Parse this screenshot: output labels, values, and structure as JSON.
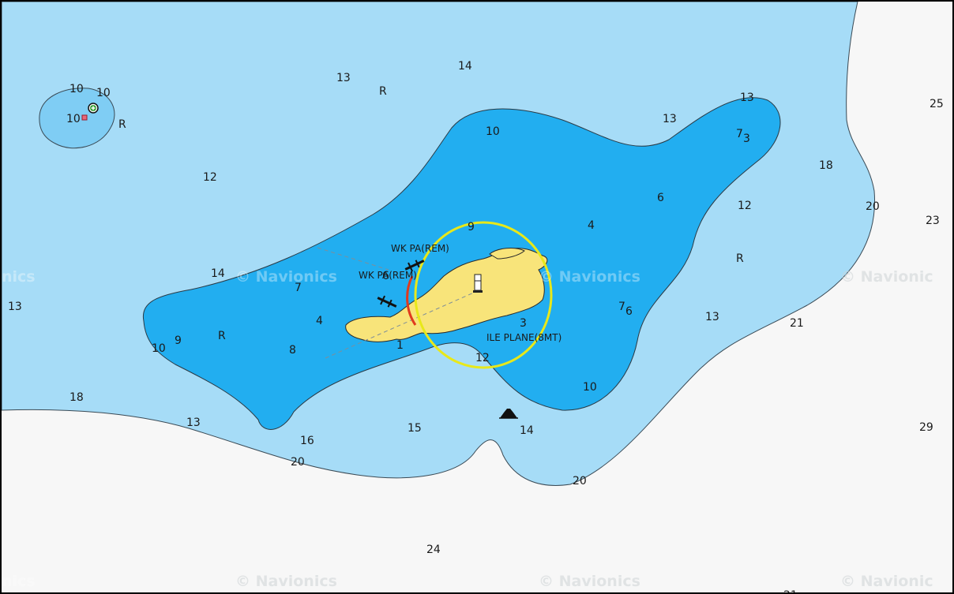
{
  "watermark": "© Navionics",
  "watermark_edge_left": "nics",
  "watermark_edge_right": "© Navionic",
  "colors": {
    "land": "#f7f7f7",
    "shallow": "#a6dcf7",
    "deep": "#22aef0",
    "island": "#f8e47a",
    "sector_ring": "#e8e81a",
    "sector_red": "#e03a1e"
  },
  "labels": {
    "wreck_1": "WK PA(REM)",
    "wreck_2": "WK PA(REM)",
    "island_name": "ILE PLANE(8MT)"
  },
  "icons": {
    "lighthouse": "lighthouse-icon",
    "wreck": "wreck-icon",
    "mooring": "mooring-buoy-icon",
    "marker": "red-marker-icon",
    "rock": "rock-hazard-icon"
  },
  "depths": {
    "d1": "10",
    "d2": "10",
    "d3": "10",
    "d4": "R",
    "d5": "13",
    "d6": "R",
    "d7": "14",
    "d8": "12",
    "d9": "13",
    "d10": "13",
    "d11": "10",
    "d12": "7",
    "d12s": "3",
    "d13": "25",
    "d14": "18",
    "d15": "6",
    "d16": "12",
    "d17": "20",
    "d18": "23",
    "d19": "9",
    "d20": "4",
    "d21": "R",
    "d22": "14",
    "d23": "13",
    "d24": "6",
    "d25": "7",
    "d26": "7",
    "d26s": "6",
    "d27": "13",
    "d28": "21",
    "d29": "4",
    "d30": "3",
    "d31": "9",
    "d32": "R",
    "d33": "10",
    "d34": "8",
    "d35": "1",
    "d36": "12",
    "d37": "10",
    "d38": "18",
    "d39": "13",
    "d40": "15",
    "d41": "14",
    "d42": "29",
    "d43": "16",
    "d44": "20",
    "d45": "20",
    "d46": "24",
    "d47": "21"
  }
}
